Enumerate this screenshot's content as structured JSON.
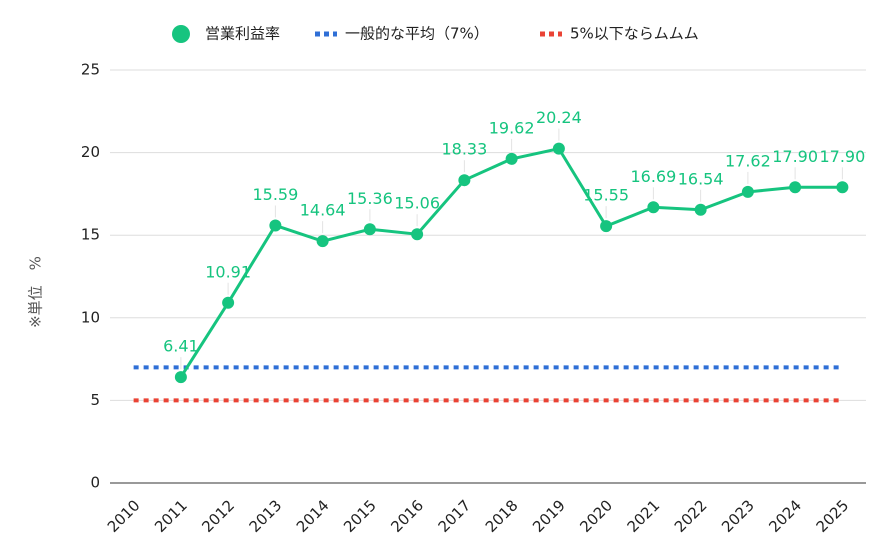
{
  "chart_data": {
    "type": "line",
    "y_label": "※単位　%",
    "categories": [
      "2010",
      "2011",
      "2012",
      "2013",
      "2014",
      "2015",
      "2016",
      "2017",
      "2018",
      "2019",
      "2020",
      "2021",
      "2022",
      "2023",
      "2024",
      "2025"
    ],
    "series": [
      {
        "name": "営業利益率",
        "color": "#16c47f",
        "style": "solid",
        "values": [
          null,
          6.41,
          10.91,
          15.59,
          14.64,
          15.36,
          15.06,
          18.33,
          19.62,
          20.24,
          15.55,
          16.69,
          16.54,
          17.62,
          17.9,
          17.9
        ],
        "value_labels": [
          null,
          "6.41",
          "10.91",
          "15.59",
          "14.64",
          "15.36",
          "15.06",
          "18.33",
          "19.62",
          "20.24",
          "15.55",
          "16.69",
          "16.54",
          "17.62",
          "17.90",
          "17.90"
        ]
      },
      {
        "name": "一般的な平均（7%）",
        "color": "#2f6fd6",
        "style": "dotted",
        "values": [
          7,
          7,
          7,
          7,
          7,
          7,
          7,
          7,
          7,
          7,
          7,
          7,
          7,
          7,
          7,
          7
        ]
      },
      {
        "name": "5%以下ならムムム",
        "color": "#ea4335",
        "style": "dotted",
        "values": [
          5,
          5,
          5,
          5,
          5,
          5,
          5,
          5,
          5,
          5,
          5,
          5,
          5,
          5,
          5,
          5
        ]
      }
    ],
    "ylim": [
      0,
      25
    ],
    "yticks": [
      0,
      5,
      10,
      15,
      20,
      25
    ],
    "grid": true,
    "legend": "top"
  }
}
